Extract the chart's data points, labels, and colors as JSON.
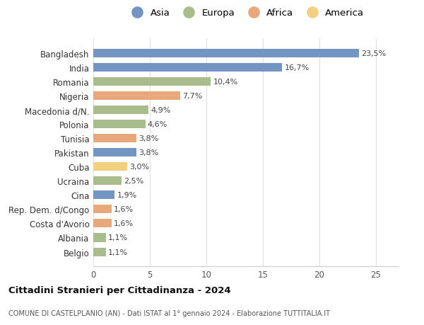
{
  "countries": [
    "Bangladesh",
    "India",
    "Romania",
    "Nigeria",
    "Macedonia d/N.",
    "Polonia",
    "Tunisia",
    "Pakistan",
    "Cuba",
    "Ucraina",
    "Cina",
    "Rep. Dem. d/Congo",
    "Costa d'Avorio",
    "Albania",
    "Belgio"
  ],
  "values": [
    23.5,
    16.7,
    10.4,
    7.7,
    4.9,
    4.6,
    3.8,
    3.8,
    3.0,
    2.5,
    1.9,
    1.6,
    1.6,
    1.1,
    1.1
  ],
  "labels": [
    "23,5%",
    "16,7%",
    "10,4%",
    "7,7%",
    "4,9%",
    "4,6%",
    "3,8%",
    "3,8%",
    "3,0%",
    "2,5%",
    "1,9%",
    "1,6%",
    "1,6%",
    "1,1%",
    "1,1%"
  ],
  "continents": [
    "Asia",
    "Asia",
    "Europa",
    "Africa",
    "Europa",
    "Europa",
    "Africa",
    "Asia",
    "America",
    "Europa",
    "Asia",
    "Africa",
    "Africa",
    "Europa",
    "Europa"
  ],
  "colors": {
    "Asia": "#7295c2",
    "Europa": "#a9bc8c",
    "Africa": "#e8a87c",
    "America": "#f2d080"
  },
  "legend_order": [
    "Asia",
    "Europa",
    "Africa",
    "America"
  ],
  "title": "Cittadini Stranieri per Cittadinanza - 2024",
  "subtitle": "COMUNE DI CASTELPLANIO (AN) - Dati ISTAT al 1° gennaio 2024 - Elaborazione TUTTITALIA.IT",
  "xlim": [
    0,
    27
  ],
  "xticks": [
    0,
    5,
    10,
    15,
    20,
    25
  ],
  "background_color": "#ffffff"
}
